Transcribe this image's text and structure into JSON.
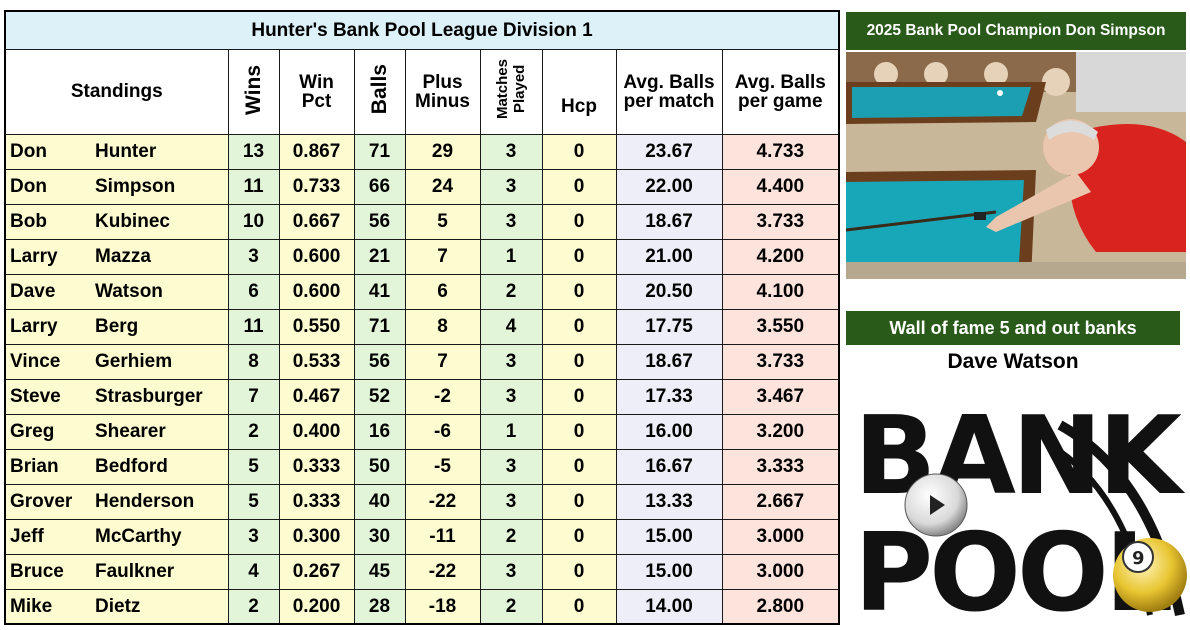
{
  "title": "Hunter's Bank Pool League Division 1",
  "headers": {
    "standings": "Standings",
    "wins": "Wins",
    "win_pct_line1": "Win",
    "win_pct_line2": "Pct",
    "balls": "Balls",
    "plus_minus_line1": "Plus",
    "plus_minus_line2": "Minus",
    "matches_line1": "Matches",
    "matches_line2": "Played",
    "hcp": "Hcp",
    "avg_match_line1": "Avg. Balls",
    "avg_match_line2": "per match",
    "avg_game_line1": "Avg. Balls",
    "avg_game_line2": "per game"
  },
  "rows": [
    {
      "first": "Don",
      "last": "Hunter",
      "wins": "13",
      "pct": "0.867",
      "balls": "71",
      "pm": "29",
      "mp": "3",
      "hcp": "0",
      "abm": "23.67",
      "abg": "4.733"
    },
    {
      "first": "Don",
      "last": "Simpson",
      "wins": "11",
      "pct": "0.733",
      "balls": "66",
      "pm": "24",
      "mp": "3",
      "hcp": "0",
      "abm": "22.00",
      "abg": "4.400"
    },
    {
      "first": "Bob",
      "last": "Kubinec",
      "wins": "10",
      "pct": "0.667",
      "balls": "56",
      "pm": "5",
      "mp": "3",
      "hcp": "0",
      "abm": "18.67",
      "abg": "3.733"
    },
    {
      "first": "Larry",
      "last": "Mazza",
      "wins": "3",
      "pct": "0.600",
      "balls": "21",
      "pm": "7",
      "mp": "1",
      "hcp": "0",
      "abm": "21.00",
      "abg": "4.200"
    },
    {
      "first": "Dave",
      "last": "Watson",
      "wins": "6",
      "pct": "0.600",
      "balls": "41",
      "pm": "6",
      "mp": "2",
      "hcp": "0",
      "abm": "20.50",
      "abg": "4.100"
    },
    {
      "first": "Larry",
      "last": "Berg",
      "wins": "11",
      "pct": "0.550",
      "balls": "71",
      "pm": "8",
      "mp": "4",
      "hcp": "0",
      "abm": "17.75",
      "abg": "3.550"
    },
    {
      "first": "Vince",
      "last": "Gerhiem",
      "wins": "8",
      "pct": "0.533",
      "balls": "56",
      "pm": "7",
      "mp": "3",
      "hcp": "0",
      "abm": "18.67",
      "abg": "3.733"
    },
    {
      "first": "Steve",
      "last": "Strasburger",
      "wins": "7",
      "pct": "0.467",
      "balls": "52",
      "pm": "-2",
      "mp": "3",
      "hcp": "0",
      "abm": "17.33",
      "abg": "3.467"
    },
    {
      "first": "Greg",
      "last": "Shearer",
      "wins": "2",
      "pct": "0.400",
      "balls": "16",
      "pm": "-6",
      "mp": "1",
      "hcp": "0",
      "abm": "16.00",
      "abg": "3.200"
    },
    {
      "first": "Brian",
      "last": "Bedford",
      "wins": "5",
      "pct": "0.333",
      "balls": "50",
      "pm": "-5",
      "mp": "3",
      "hcp": "0",
      "abm": "16.67",
      "abg": "3.333"
    },
    {
      "first": "Grover",
      "last": "Henderson",
      "wins": "5",
      "pct": "0.333",
      "balls": "40",
      "pm": "-22",
      "mp": "3",
      "hcp": "0",
      "abm": "13.33",
      "abg": "2.667"
    },
    {
      "first": "Jeff",
      "last": "McCarthy",
      "wins": "3",
      "pct": "0.300",
      "balls": "30",
      "pm": "-11",
      "mp": "2",
      "hcp": "0",
      "abm": "15.00",
      "abg": "3.000"
    },
    {
      "first": "Bruce",
      "last": "Faulkner",
      "wins": "4",
      "pct": "0.267",
      "balls": "45",
      "pm": "-22",
      "mp": "3",
      "hcp": "0",
      "abm": "15.00",
      "abg": "3.000"
    },
    {
      "first": "Mike",
      "last": "Dietz",
      "wins": "2",
      "pct": "0.200",
      "balls": "28",
      "pm": "-18",
      "mp": "2",
      "hcp": "0",
      "abm": "14.00",
      "abg": "2.800"
    }
  ],
  "champion_banner": "2025 Bank Pool Champion Don Simpson",
  "fame_banner": "Wall of fame 5 and out banks",
  "fame_name": "Dave Watson",
  "logo": {
    "line1": "BANK",
    "line2": "POOL",
    "ball_number": "9"
  },
  "colors": {
    "banner_green": "#2a5a1a",
    "title_bg": "#dcf1f8",
    "name_bg": "#fdfbd0",
    "green_col": "#e3f5d8",
    "lavender_col": "#eeeef8",
    "pink_col": "#fce3dc"
  }
}
